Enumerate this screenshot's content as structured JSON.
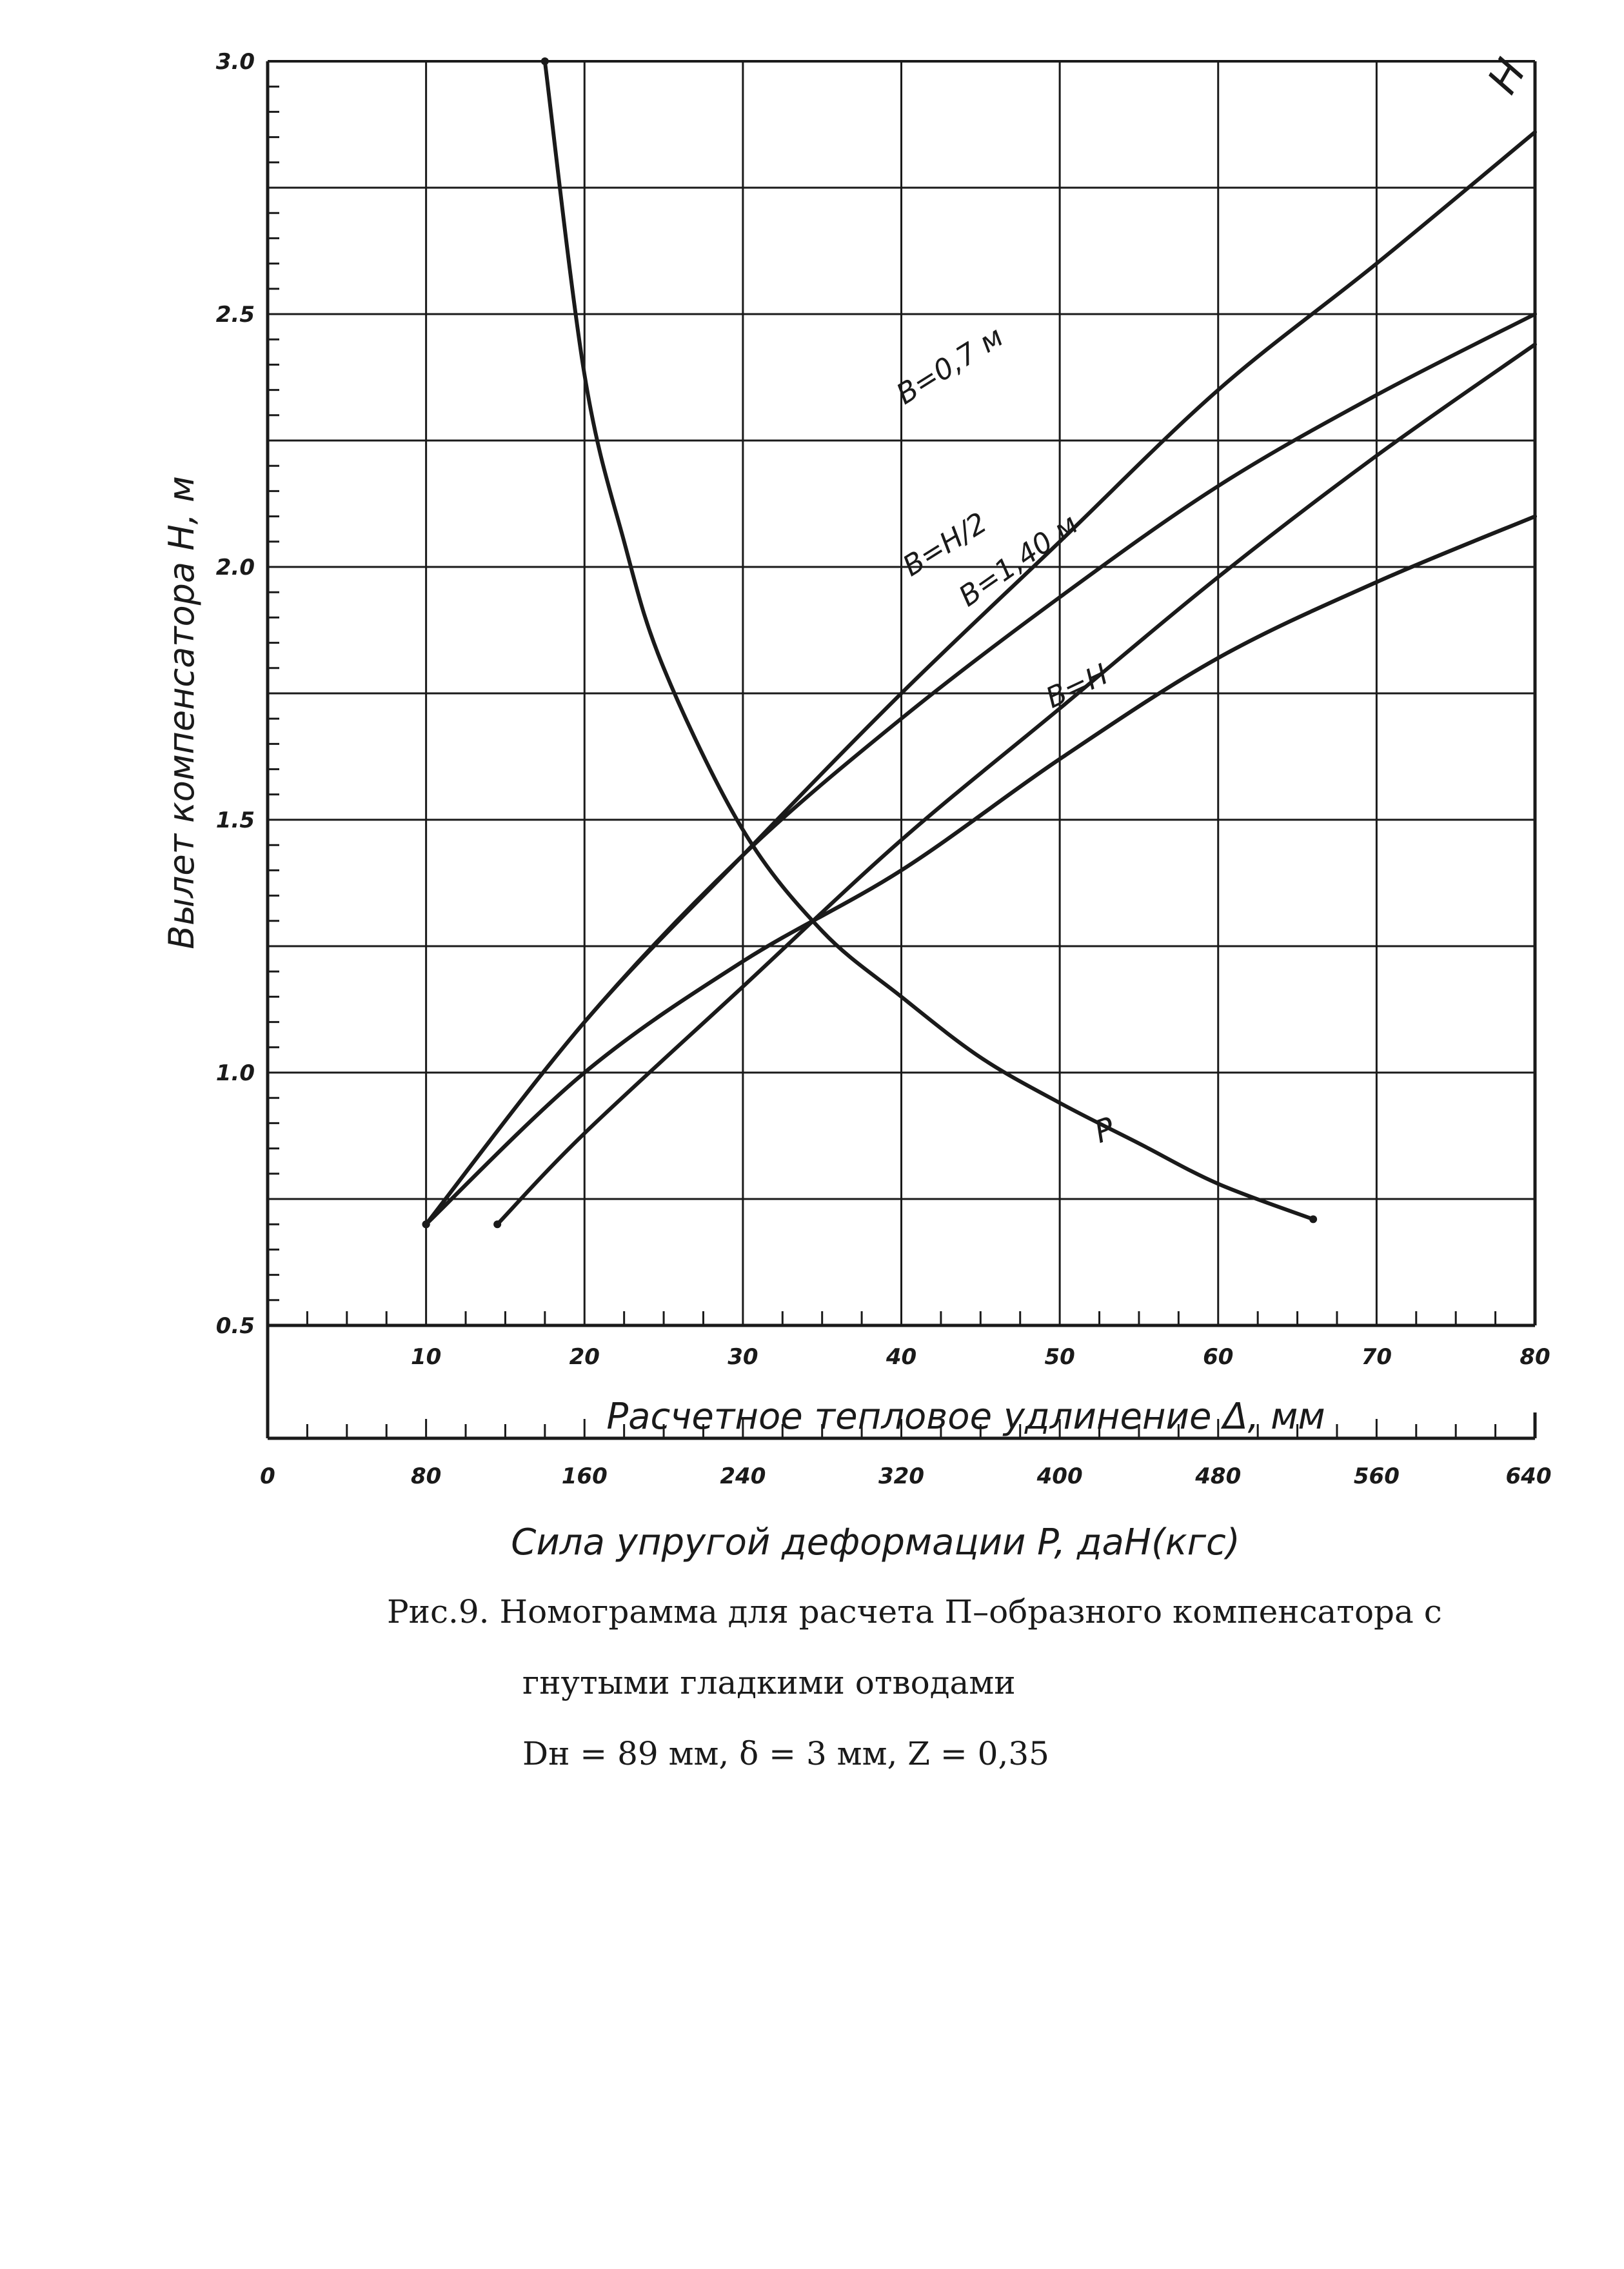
{
  "chart_data": {
    "type": "line",
    "ylabel": "Вылет компенсатора H, м",
    "xlabel": "Расчетное тепловое удлинение Δ, мм",
    "x2label": "Сила упругой деформации P, даН(кгс)",
    "xlim": [
      0,
      80
    ],
    "ylim": [
      0.5,
      3.0
    ],
    "x2lim": [
      0,
      640
    ],
    "y_ticks": [
      "0.5",
      "1.0",
      "1.5",
      "2.0",
      "2.5",
      "3.0"
    ],
    "x_ticks": [
      "10",
      "20",
      "30",
      "40",
      "50",
      "60",
      "70",
      "80"
    ],
    "x2_ticks": [
      "0",
      "80",
      "160",
      "240",
      "320",
      "400",
      "480",
      "560",
      "640"
    ],
    "grid": true,
    "series": [
      {
        "name": "H",
        "x": [
          10,
          20,
          30,
          40,
          50,
          60,
          70,
          80
        ],
        "y": [
          0.7,
          1.1,
          1.43,
          1.75,
          2.05,
          2.35,
          2.6,
          2.86
        ]
      },
      {
        "name": "B=0,7 м",
        "x": [
          10,
          20,
          30,
          40,
          50,
          60,
          70,
          80
        ],
        "y": [
          0.7,
          1.0,
          1.22,
          1.4,
          1.62,
          1.82,
          1.97,
          2.1
        ]
      },
      {
        "name": "B=H/2",
        "x": [
          10,
          20,
          30,
          40,
          50,
          60,
          70,
          80
        ],
        "y": [
          0.7,
          1.1,
          1.43,
          1.7,
          1.94,
          2.16,
          2.34,
          2.5
        ]
      },
      {
        "name": "B=1,40 м",
        "x": [
          14.5,
          20,
          30,
          40,
          50,
          60,
          70,
          80
        ],
        "y": [
          0.7,
          0.88,
          1.17,
          1.46,
          1.72,
          1.98,
          2.22,
          2.44
        ]
      },
      {
        "name": "B=H",
        "x": [
          10,
          20,
          30,
          40,
          50,
          60,
          70,
          80
        ],
        "y": [
          0.7,
          1.0,
          1.22,
          1.4,
          1.62,
          1.82,
          1.97,
          2.1
        ]
      },
      {
        "name": "P",
        "x2": [
          140,
          160,
          180,
          200,
          240,
          280,
          320,
          360,
          400,
          440,
          480,
          528
        ],
        "y": [
          3.0,
          2.38,
          2.05,
          1.8,
          1.48,
          1.28,
          1.15,
          1.03,
          0.94,
          0.86,
          0.78,
          0.71
        ]
      }
    ],
    "line_labels": [
      "H",
      "B=0,7 м",
      "B=H/2",
      "B=1,40 м",
      "B=H",
      "P"
    ]
  },
  "caption": {
    "line1": "Рис.9. Номограмма для расчета П–образного компенсатора с",
    "line2": "гнутыми гладкими отводами",
    "line3": "Dн = 89 мм,  δ = 3 мм,  Z = 0,35"
  },
  "colors": {
    "ink": "#1a1a1a",
    "paper": "#ffffff"
  }
}
